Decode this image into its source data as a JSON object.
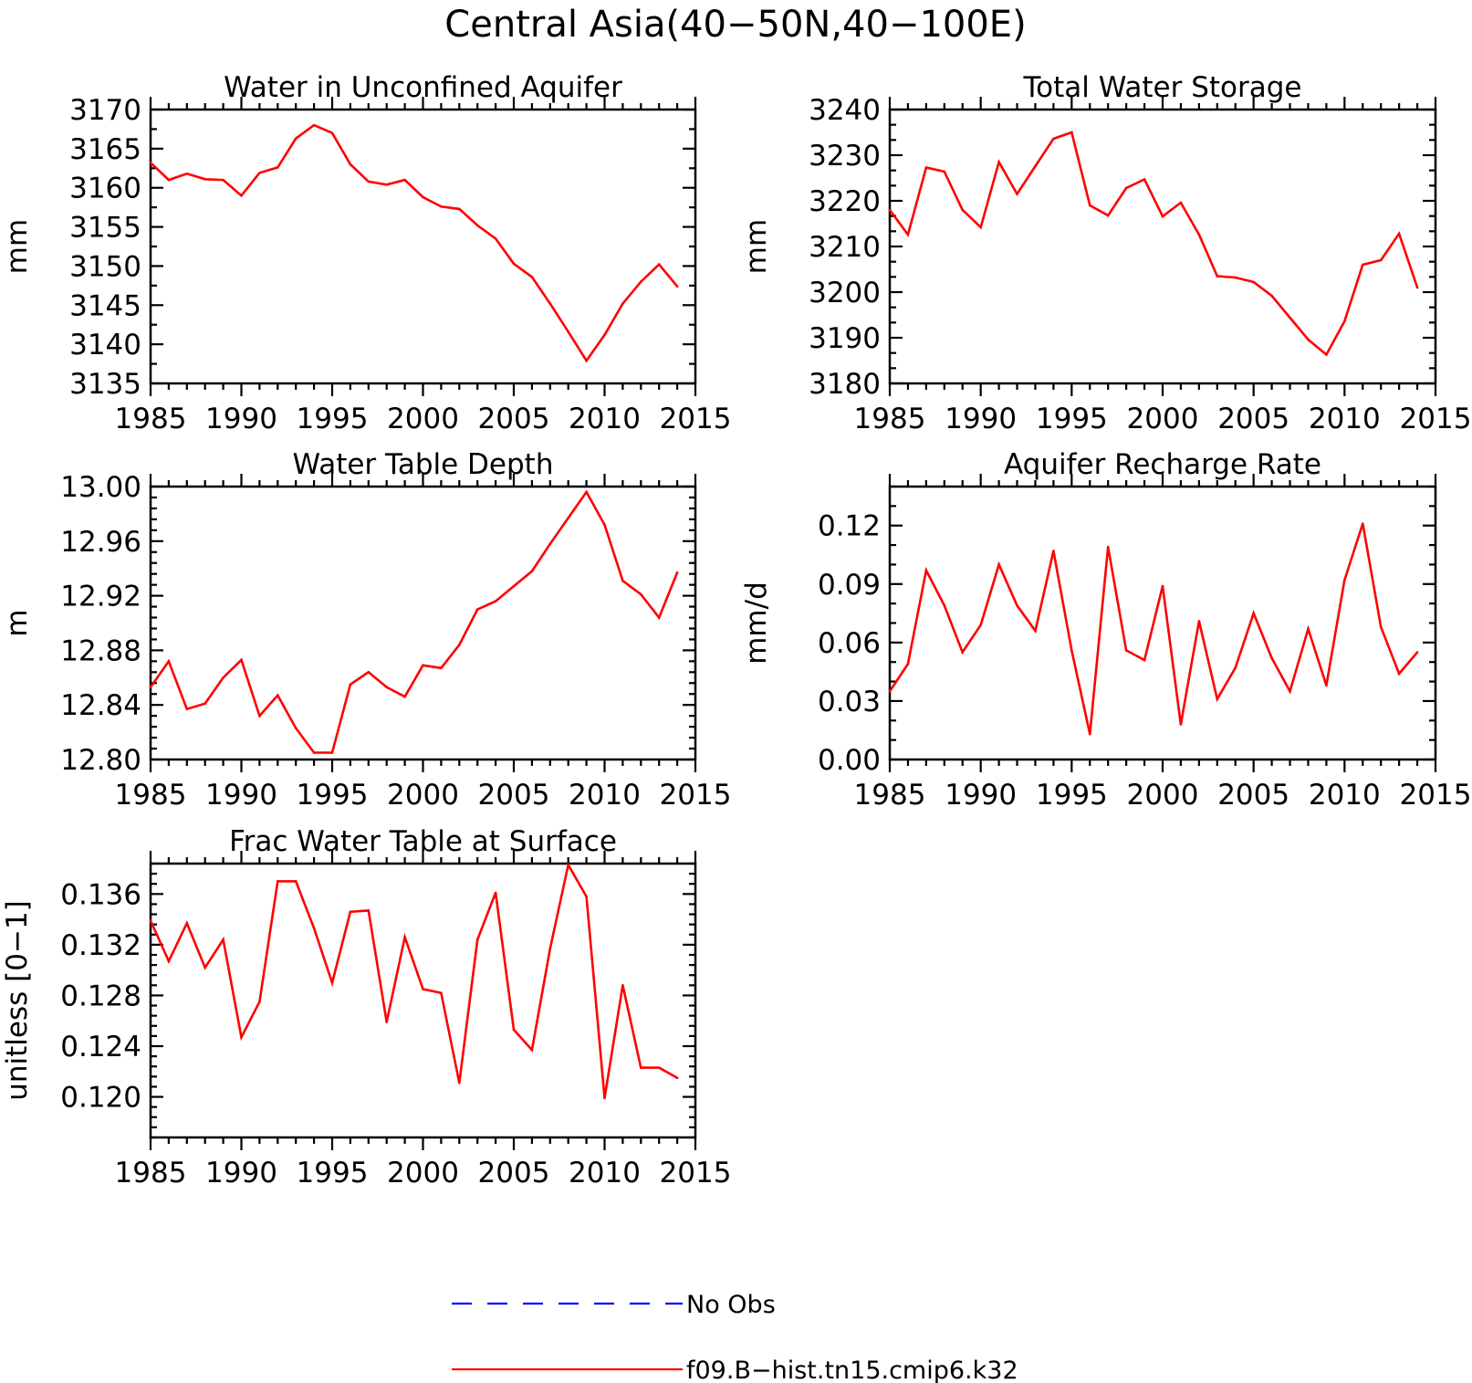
{
  "figure_title": "Central Asia(40−50N,40−100E)",
  "colors": {
    "model": "#ff0000",
    "obs": "#0000ff",
    "axis": "#000000",
    "background": "#ffffff"
  },
  "legend": {
    "placement": "bottom-center",
    "items": [
      {
        "label": "No Obs",
        "color": "#0000ff",
        "style": "dashed"
      },
      {
        "label": "f09.B−hist.tn15.cmip6.k32",
        "color": "#ff0000",
        "style": "solid"
      }
    ]
  },
  "chart_data": [
    {
      "type": "line",
      "title": "Water in Unconfined Aquifer",
      "xlabel": "",
      "ylabel": "mm",
      "xlim": [
        1985,
        2015
      ],
      "ylim": [
        3135,
        3170
      ],
      "xticks": [
        "1985",
        "1990",
        "1995",
        "2000",
        "2005",
        "2010",
        "2015"
      ],
      "yticks": [
        "3135",
        "3140",
        "3145",
        "3150",
        "3155",
        "3160",
        "3165",
        "3170"
      ],
      "x": [
        1985,
        1986,
        1987,
        1988,
        1989,
        1990,
        1991,
        1992,
        1993,
        1994,
        1995,
        1996,
        1997,
        1998,
        1999,
        2000,
        2001,
        2002,
        2003,
        2004,
        2005,
        2006,
        2007,
        2008,
        2009,
        2010,
        2011,
        2012,
        2013,
        2014
      ],
      "series": [
        {
          "name": "f09.B−hist.tn15.cmip6.k32",
          "color": "#ff0000",
          "values": [
            3163.2,
            3161.0,
            3161.8,
            3161.1,
            3161.0,
            3159.0,
            3161.9,
            3162.6,
            3166.3,
            3168.0,
            3167.0,
            3163.0,
            3160.8,
            3160.4,
            3161.0,
            3158.8,
            3157.6,
            3157.3,
            3155.2,
            3153.5,
            3150.3,
            3148.6,
            3145.2,
            3141.6,
            3137.9,
            3141.2,
            3145.2,
            3148.0,
            3150.2,
            3147.4
          ]
        }
      ]
    },
    {
      "type": "line",
      "title": "Total Water Storage",
      "xlabel": "",
      "ylabel": "mm",
      "xlim": [
        1985,
        2015
      ],
      "ylim": [
        3180,
        3240
      ],
      "xticks": [
        "1985",
        "1990",
        "1995",
        "2000",
        "2005",
        "2010",
        "2015"
      ],
      "yticks": [
        "3180",
        "3190",
        "3200",
        "3210",
        "3220",
        "3230",
        "3240"
      ],
      "x": [
        1985,
        1986,
        1987,
        1988,
        1989,
        1990,
        1991,
        1992,
        1993,
        1994,
        1995,
        1996,
        1997,
        1998,
        1999,
        2000,
        2001,
        2002,
        2003,
        2004,
        2005,
        2006,
        2007,
        2008,
        2009,
        2010,
        2011,
        2012,
        2013,
        2014
      ],
      "series": [
        {
          "name": "f09.B−hist.tn15.cmip6.k32",
          "color": "#ff0000",
          "values": [
            3218.0,
            3212.6,
            3227.3,
            3226.4,
            3218.0,
            3214.2,
            3228.5,
            3221.5,
            3227.6,
            3233.6,
            3235.0,
            3219.0,
            3216.8,
            3222.8,
            3224.7,
            3216.6,
            3219.6,
            3212.6,
            3203.5,
            3203.2,
            3202.2,
            3199.2,
            3194.4,
            3189.6,
            3186.3,
            3193.6,
            3206.0,
            3207.0,
            3212.8,
            3201.0
          ]
        }
      ]
    },
    {
      "type": "line",
      "title": "Water Table Depth",
      "xlabel": "",
      "ylabel": "m",
      "xlim": [
        1985,
        2015
      ],
      "ylim": [
        12.8,
        13.0
      ],
      "xticks": [
        "1985",
        "1990",
        "1995",
        "2000",
        "2005",
        "2010",
        "2015"
      ],
      "yticks": [
        "12.80",
        "12.84",
        "12.88",
        "12.92",
        "12.96",
        "13.00"
      ],
      "x": [
        1985,
        1986,
        1987,
        1988,
        1989,
        1990,
        1991,
        1992,
        1993,
        1994,
        1995,
        1996,
        1997,
        1998,
        1999,
        2000,
        2001,
        2002,
        2003,
        2004,
        2005,
        2006,
        2007,
        2008,
        2009,
        2010,
        2011,
        2012,
        2013,
        2014
      ],
      "series": [
        {
          "name": "f09.B−hist.tn15.cmip6.k32",
          "color": "#ff0000",
          "values": [
            12.853,
            12.872,
            12.837,
            12.841,
            12.86,
            12.873,
            12.832,
            12.847,
            12.823,
            12.805,
            12.805,
            12.855,
            12.864,
            12.853,
            12.846,
            12.869,
            12.867,
            12.884,
            12.91,
            12.916,
            12.927,
            12.938,
            12.958,
            12.977,
            12.996,
            12.972,
            12.931,
            12.921,
            12.904,
            12.937
          ]
        }
      ]
    },
    {
      "type": "line",
      "title": "Aquifer Recharge Rate",
      "xlabel": "",
      "ylabel": "mm/d",
      "xlim": [
        1985,
        2015
      ],
      "ylim": [
        0,
        0.14
      ],
      "xticks": [
        "1985",
        "1990",
        "1995",
        "2000",
        "2005",
        "2010",
        "2015"
      ],
      "yticks": [
        "0.00",
        "0.03",
        "0.06",
        "0.09",
        "0.12"
      ],
      "x": [
        1985,
        1986,
        1987,
        1988,
        1989,
        1990,
        1991,
        1992,
        1993,
        1994,
        1995,
        1996,
        1997,
        1998,
        1999,
        2000,
        2001,
        2002,
        2003,
        2004,
        2005,
        2006,
        2007,
        2008,
        2009,
        2010,
        2011,
        2012,
        2013,
        2014
      ],
      "series": [
        {
          "name": "f09.B−hist.tn15.cmip6.k32",
          "color": "#ff0000",
          "values": [
            0.035,
            0.049,
            0.097,
            0.079,
            0.055,
            0.069,
            0.1,
            0.079,
            0.066,
            0.107,
            0.056,
            0.013,
            0.109,
            0.056,
            0.051,
            0.089,
            0.018,
            0.071,
            0.031,
            0.047,
            0.075,
            0.052,
            0.035,
            0.067,
            0.038,
            0.092,
            0.121,
            0.068,
            0.044,
            0.055
          ]
        }
      ]
    },
    {
      "type": "line",
      "title": "Frac Water Table at Surface",
      "xlabel": "",
      "ylabel": "unitless [0−1]",
      "xlim": [
        1985,
        2015
      ],
      "ylim": [
        0.1168,
        0.1384
      ],
      "xticks": [
        "1985",
        "1990",
        "1995",
        "2000",
        "2005",
        "2010",
        "2015"
      ],
      "yticks": [
        "0.120",
        "0.124",
        "0.128",
        "0.132",
        "0.136"
      ],
      "x": [
        1985,
        1986,
        1987,
        1988,
        1989,
        1990,
        1991,
        1992,
        1993,
        1994,
        1995,
        1996,
        1997,
        1998,
        1999,
        2000,
        2001,
        2002,
        2003,
        2004,
        2005,
        2006,
        2007,
        2008,
        2009,
        2010,
        2011,
        2012,
        2013,
        2014
      ],
      "series": [
        {
          "name": "f09.B−hist.tn15.cmip6.k32",
          "color": "#ff0000",
          "values": [
            0.1339,
            0.1307,
            0.1337,
            0.1302,
            0.1324,
            0.1247,
            0.1275,
            0.137,
            0.137,
            0.1333,
            0.129,
            0.1346,
            0.1347,
            0.1259,
            0.1326,
            0.1285,
            0.1282,
            0.1211,
            0.1324,
            0.1361,
            0.1253,
            0.1237,
            0.1317,
            0.1383,
            0.1358,
            0.1199,
            0.1288,
            0.1223,
            0.1223,
            0.1215
          ]
        }
      ]
    }
  ]
}
